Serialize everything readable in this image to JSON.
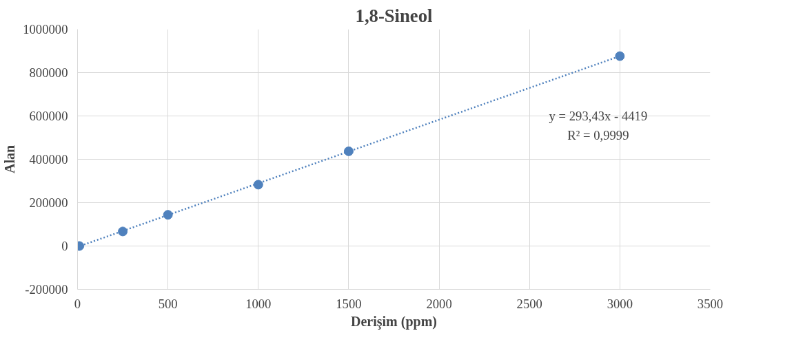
{
  "chart_data": {
    "type": "scatter",
    "title": "1,8-Sineol",
    "xlabel": "Derişim (ppm)",
    "ylabel": "Alan",
    "x": [
      10,
      250,
      500,
      1000,
      1500,
      3000
    ],
    "series": [
      {
        "color": "#4f81bd",
        "values": [
          0,
          67000,
          144000,
          283000,
          437000,
          876000
        ]
      },
      {
        "type": "line",
        "color": "#4f81bd",
        "line_style": "dotted",
        "marker": "none",
        "x": [
          0,
          3000
        ],
        "values": [
          -4000,
          876000
        ]
      }
    ],
    "marker": "circle",
    "xlim": [
      0,
      3500
    ],
    "ylim": [
      -200000,
      1000000
    ],
    "xticks": [
      0,
      500,
      1000,
      1500,
      2000,
      2500,
      3000,
      3500
    ],
    "yticks": [
      -200000,
      0,
      200000,
      400000,
      600000,
      800000,
      1000000
    ],
    "grid": true,
    "annotations": [
      "y = 293,43x - 4419",
      "R² = 0,9999"
    ]
  }
}
